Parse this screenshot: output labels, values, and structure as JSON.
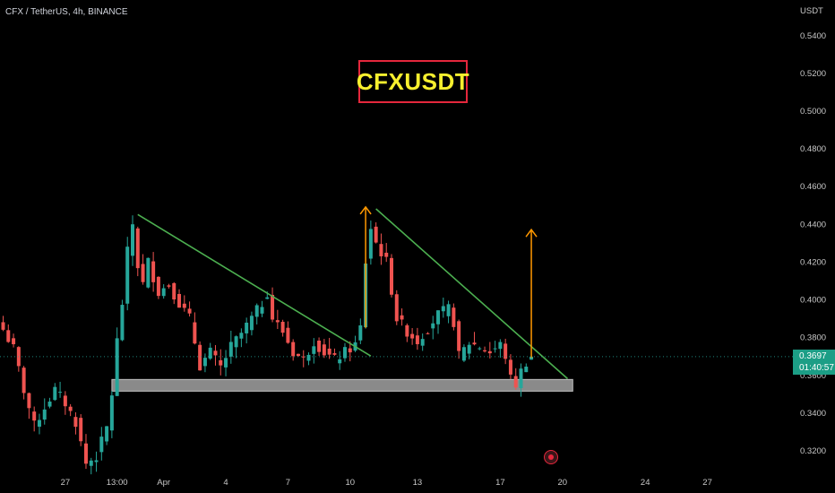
{
  "legend": {
    "symbol": "CFX / TetherUS, 4h, BINANCE"
  },
  "banner": {
    "text": "CFXUSDT"
  },
  "price": {
    "last": "0.3697",
    "countdown": "01:40:57"
  },
  "colors": {
    "up": "#26a69a",
    "down": "#ef5350",
    "trend": "#4caf50",
    "arrow": "#ff9800",
    "zone": "#8a8a8a"
  },
  "chart_data": {
    "type": "candlestick",
    "axis_unit": "USDT",
    "ylim": [
      0.306,
      0.552
    ],
    "y_ticks": [
      0.32,
      0.34,
      0.36,
      0.38,
      0.4,
      0.42,
      0.44,
      0.46,
      0.48,
      0.5,
      0.52,
      0.54
    ],
    "y_tick_labels": [
      "0.3200",
      "0.3400",
      "0.3600",
      "0.3800",
      "0.4000",
      "0.4200",
      "0.4400",
      "0.4600",
      "0.4800",
      "0.5000",
      "0.5200",
      "0.5400"
    ],
    "x_ticks": [
      {
        "label": "27",
        "bar": 12
      },
      {
        "label": "13:00",
        "bar": 22
      },
      {
        "label": "Apr",
        "bar": 31
      },
      {
        "label": "4",
        "bar": 43
      },
      {
        "label": "7",
        "bar": 55
      },
      {
        "label": "10",
        "bar": 67
      },
      {
        "label": "13",
        "bar": 80
      },
      {
        "label": "17",
        "bar": 96
      },
      {
        "label": "20",
        "bar": 108
      },
      {
        "label": "24",
        "bar": 124
      },
      {
        "label": "27",
        "bar": 136
      }
    ],
    "close_path": [
      [
        0,
        0.384
      ],
      [
        2,
        0.374
      ],
      [
        4,
        0.352
      ],
      [
        6,
        0.333
      ],
      [
        8,
        0.343
      ],
      [
        10,
        0.352
      ],
      [
        12,
        0.345
      ],
      [
        14,
        0.335
      ],
      [
        16,
        0.313
      ],
      [
        18,
        0.317
      ],
      [
        20,
        0.332
      ],
      [
        21,
        0.35
      ],
      [
        22,
        0.378
      ],
      [
        23,
        0.398
      ],
      [
        24,
        0.425
      ],
      [
        25,
        0.44
      ],
      [
        26,
        0.418
      ],
      [
        27,
        0.408
      ],
      [
        28,
        0.42
      ],
      [
        30,
        0.404
      ],
      [
        32,
        0.408
      ],
      [
        34,
        0.398
      ],
      [
        36,
        0.39
      ],
      [
        38,
        0.365
      ],
      [
        40,
        0.372
      ],
      [
        42,
        0.364
      ],
      [
        44,
        0.375
      ],
      [
        46,
        0.382
      ],
      [
        48,
        0.39
      ],
      [
        50,
        0.398
      ],
      [
        51,
        0.404
      ],
      [
        52,
        0.39
      ],
      [
        54,
        0.383
      ],
      [
        56,
        0.372
      ],
      [
        58,
        0.368
      ],
      [
        60,
        0.378
      ],
      [
        62,
        0.372
      ],
      [
        64,
        0.368
      ],
      [
        66,
        0.372
      ],
      [
        68,
        0.376
      ],
      [
        69,
        0.385
      ],
      [
        70,
        0.42
      ],
      [
        71,
        0.438
      ],
      [
        72,
        0.43
      ],
      [
        74,
        0.42
      ],
      [
        75,
        0.405
      ],
      [
        76,
        0.39
      ],
      [
        78,
        0.383
      ],
      [
        80,
        0.378
      ],
      [
        82,
        0.385
      ],
      [
        84,
        0.392
      ],
      [
        86,
        0.395
      ],
      [
        87,
        0.388
      ],
      [
        88,
        0.37
      ],
      [
        90,
        0.377
      ],
      [
        92,
        0.375
      ],
      [
        94,
        0.372
      ],
      [
        96,
        0.376
      ],
      [
        97,
        0.37
      ],
      [
        98,
        0.358
      ],
      [
        99,
        0.355
      ],
      [
        100,
        0.362
      ],
      [
        101,
        0.367
      ],
      [
        102,
        0.37
      ]
    ],
    "support_zone": {
      "from_bar": 21,
      "to_bar": 110,
      "low": 0.3514,
      "high": 0.3576
    },
    "trendlines": [
      {
        "from": [
          26,
          0.445
        ],
        "to": [
          71,
          0.37
        ]
      },
      {
        "from": [
          72,
          0.448
        ],
        "to": [
          109,
          0.358
        ]
      }
    ],
    "arrows": [
      {
        "bar": 70,
        "from": 0.385,
        "to": 0.449
      },
      {
        "bar": 102,
        "from": 0.369,
        "to": 0.437
      }
    ]
  }
}
